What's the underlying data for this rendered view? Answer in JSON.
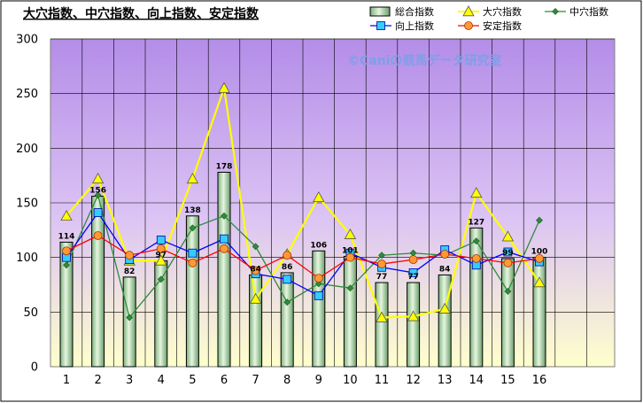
{
  "chart_data": {
    "type": "bar",
    "title": "大穴指数、中穴指数、向上指数、安定指数",
    "watermark": "©Caniの競馬データ研究室",
    "categories": [
      "1",
      "2",
      "3",
      "4",
      "5",
      "6",
      "7",
      "8",
      "9",
      "10",
      "11",
      "12",
      "13",
      "14",
      "15",
      "16"
    ],
    "ylim": [
      0,
      300
    ],
    "yticks": [
      0,
      50,
      100,
      150,
      200,
      250,
      300
    ],
    "grid": true,
    "legend_position": "top-right",
    "series": [
      {
        "name": "総合指数",
        "kind": "bar",
        "color": "#b8e0b8",
        "values": [
          114,
          156,
          82,
          97,
          138,
          178,
          84,
          86,
          106,
          101,
          77,
          77,
          84,
          127,
          99,
          100
        ]
      },
      {
        "name": "大穴指数",
        "kind": "line",
        "color": "#ffff00",
        "marker": "triangle",
        "values": [
          138,
          172,
          97,
          97,
          172,
          255,
          62,
          103,
          155,
          121,
          45,
          46,
          53,
          159,
          119,
          77
        ]
      },
      {
        "name": "中穴指数",
        "kind": "line",
        "color": "#2e8b3c",
        "marker": "diamond",
        "values": [
          93,
          157,
          45,
          80,
          127,
          138,
          110,
          59,
          76,
          72,
          102,
          104,
          102,
          115,
          69,
          134
        ]
      },
      {
        "name": "向上指数",
        "kind": "line",
        "color": "#0000ff",
        "marker": "square",
        "values": [
          100,
          141,
          98,
          116,
          104,
          117,
          85,
          80,
          65,
          104,
          91,
          86,
          107,
          93,
          105,
          96
        ]
      },
      {
        "name": "安定指数",
        "kind": "line",
        "color": "#ff0000",
        "marker": "circle",
        "values": [
          106,
          120,
          102,
          108,
          95,
          108,
          88,
          102,
          81,
          100,
          94,
          98,
          103,
          99,
          95,
          99
        ]
      }
    ]
  }
}
